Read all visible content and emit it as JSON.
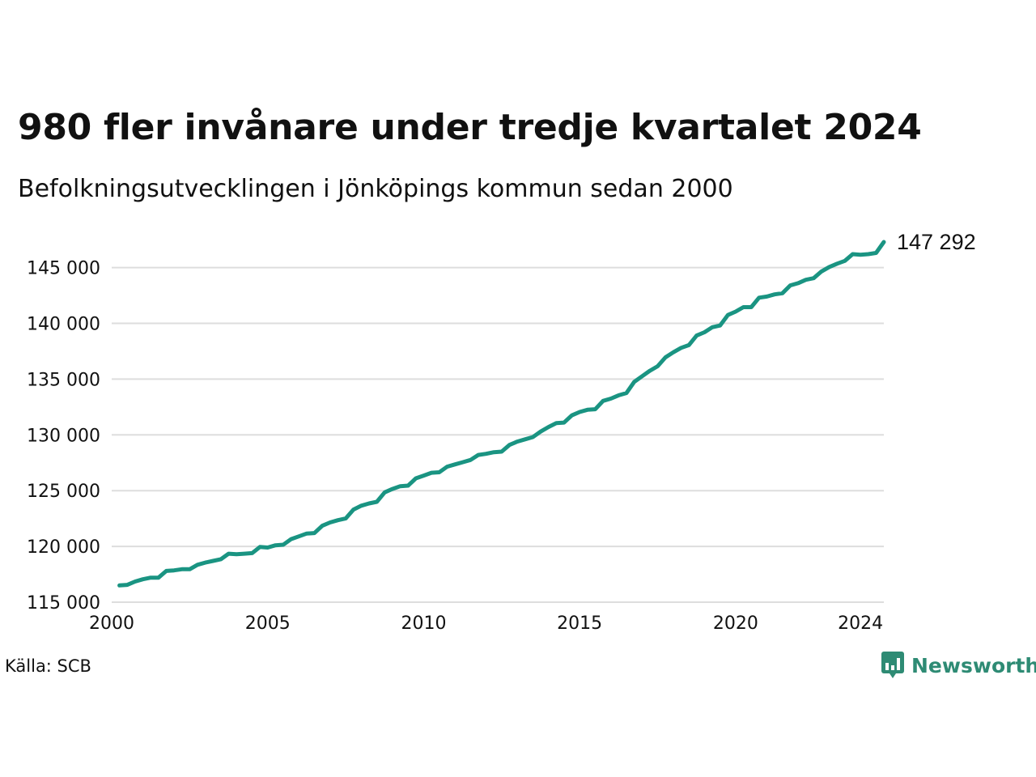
{
  "header": {
    "title": "980 fler invånare under tredje kvartalet 2024",
    "subtitle": "Befolkningsutvecklingen i Jönköpings kommun sedan 2000"
  },
  "footer": {
    "source": "Källa: SCB",
    "brand": "Newsworthy",
    "brand_icon": "newsworthy-logo-icon"
  },
  "colors": {
    "line": "#1a9482",
    "grid": "#dddddd",
    "brand": "#2e8b74"
  },
  "chart_data": {
    "type": "line",
    "title": "980 fler invånare under tredje kvartalet 2024",
    "subtitle": "Befolkningsutvecklingen i Jönköpings kommun sedan 2000",
    "xlabel": "",
    "ylabel": "",
    "xlim": [
      2000,
      2024.75
    ],
    "ylim": [
      115000,
      147292
    ],
    "x_ticks": [
      2000,
      2005,
      2010,
      2015,
      2020,
      2024
    ],
    "x_tick_labels": [
      "2000",
      "2005",
      "2010",
      "2015",
      "2020",
      "2024"
    ],
    "y_ticks": [
      115000,
      120000,
      125000,
      130000,
      135000,
      140000,
      145000
    ],
    "y_tick_labels": [
      "115 000",
      "120 000",
      "125 000",
      "130 000",
      "135 000",
      "140 000",
      "145 000"
    ],
    "grid": true,
    "end_label": "147 292",
    "series": [
      {
        "x": [
          2000.25,
          2000.5,
          2000.75,
          2001.0,
          2001.25,
          2001.5,
          2001.75,
          2002.0,
          2002.25,
          2002.5,
          2002.75,
          2003.0,
          2003.25,
          2003.5,
          2003.75,
          2004.0,
          2004.25,
          2004.5,
          2004.75,
          2005.0,
          2005.25,
          2005.5,
          2005.75,
          2006.0,
          2006.25,
          2006.5,
          2006.75,
          2007.0,
          2007.25,
          2007.5,
          2007.75,
          2008.0,
          2008.25,
          2008.5,
          2008.75,
          2009.0,
          2009.25,
          2009.5,
          2009.75,
          2010.0,
          2010.25,
          2010.5,
          2010.75,
          2011.0,
          2011.25,
          2011.5,
          2011.75,
          2012.0,
          2012.25,
          2012.5,
          2012.75,
          2013.0,
          2013.25,
          2013.5,
          2013.75,
          2014.0,
          2014.25,
          2014.5,
          2014.75,
          2015.0,
          2015.25,
          2015.5,
          2015.75,
          2016.0,
          2016.25,
          2016.5,
          2016.75,
          2017.0,
          2017.25,
          2017.5,
          2017.75,
          2018.0,
          2018.25,
          2018.5,
          2018.75,
          2019.0,
          2019.25,
          2019.5,
          2019.75,
          2020.0,
          2020.25,
          2020.5,
          2020.75,
          2021.0,
          2021.25,
          2021.5,
          2021.75,
          2022.0,
          2022.25,
          2022.5,
          2022.75,
          2023.0,
          2023.25,
          2023.5,
          2023.75,
          2024.0,
          2024.25,
          2024.5,
          2024.75
        ],
        "values": [
          116500,
          116550,
          116850,
          117050,
          117200,
          117200,
          117800,
          117850,
          117950,
          117950,
          118350,
          118550,
          118700,
          118850,
          119350,
          119300,
          119350,
          119400,
          119950,
          119900,
          120100,
          120150,
          120650,
          120900,
          121150,
          121200,
          121850,
          122150,
          122350,
          122500,
          123300,
          123650,
          123850,
          124000,
          124850,
          125150,
          125400,
          125450,
          126100,
          126350,
          126600,
          126650,
          127150,
          127350,
          127550,
          127750,
          128200,
          128300,
          128450,
          128500,
          129100,
          129400,
          129600,
          129800,
          130300,
          130700,
          131050,
          131100,
          131750,
          132050,
          132250,
          132300,
          133050,
          133250,
          133550,
          133750,
          134750,
          135250,
          135750,
          136150,
          136950,
          137400,
          137800,
          138050,
          138900,
          139200,
          139650,
          139800,
          140750,
          141050,
          141450,
          141450,
          142300,
          142400,
          142600,
          142700,
          143400,
          143600,
          143900,
          144050,
          144650,
          145050,
          145350,
          145600,
          146200,
          146150,
          146200,
          146312,
          147292
        ]
      }
    ]
  }
}
